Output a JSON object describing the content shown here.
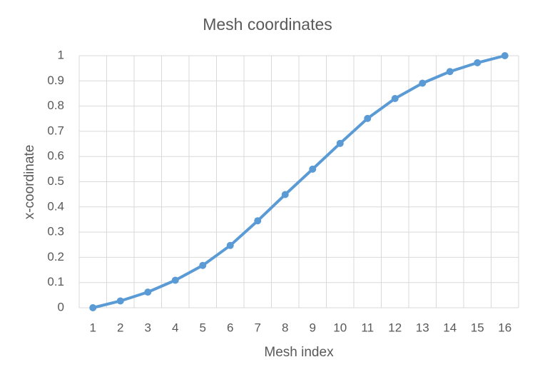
{
  "chart_data": {
    "type": "line",
    "title": "Mesh coordinates",
    "x_label": "Mesh index",
    "y_label": "x-coordinate",
    "categories": [
      "1",
      "2",
      "3",
      "4",
      "5",
      "6",
      "7",
      "8",
      "9",
      "10",
      "11",
      "12",
      "13",
      "14",
      "15",
      "16"
    ],
    "series": [
      {
        "name": "x-coordinate",
        "color": "#5b9bd5",
        "values": [
          0,
          0.027,
          0.062,
          0.109,
          0.168,
          0.247,
          0.345,
          0.449,
          0.55,
          0.652,
          0.751,
          0.83,
          0.891,
          0.937,
          0.972,
          1
        ]
      }
    ],
    "ylim": [
      0,
      1
    ],
    "yticks": [
      0,
      0.1,
      0.2,
      0.3,
      0.4,
      0.5,
      0.6,
      0.7,
      0.8,
      0.9,
      1
    ],
    "grid": true
  }
}
